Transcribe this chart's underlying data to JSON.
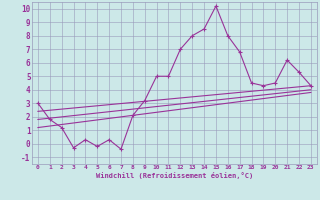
{
  "x": [
    0,
    1,
    2,
    3,
    4,
    5,
    6,
    7,
    8,
    9,
    10,
    11,
    12,
    13,
    14,
    15,
    16,
    17,
    18,
    19,
    20,
    21,
    22,
    23
  ],
  "line1": [
    3.0,
    1.8,
    1.2,
    -0.3,
    0.3,
    -0.2,
    0.3,
    -0.4,
    2.1,
    3.2,
    5.0,
    5.0,
    7.0,
    8.0,
    8.5,
    10.2,
    8.0,
    6.8,
    4.5,
    4.3,
    4.5,
    6.2,
    5.3,
    4.3
  ],
  "line2_x": [
    0,
    23
  ],
  "line2_y": [
    1.8,
    4.0
  ],
  "line3_x": [
    0,
    23
  ],
  "line3_y": [
    2.4,
    4.3
  ],
  "line4_x": [
    0,
    23
  ],
  "line4_y": [
    1.2,
    3.8
  ],
  "color": "#993399",
  "bg_color": "#cce8e8",
  "grid_color": "#9999bb",
  "xlabel": "Windchill (Refroidissement éolien,°C)",
  "xlim": [
    -0.5,
    23.5
  ],
  "ylim": [
    -1.5,
    10.5
  ],
  "yticks": [
    -1,
    0,
    1,
    2,
    3,
    4,
    5,
    6,
    7,
    8,
    9,
    10
  ],
  "xticks": [
    0,
    1,
    2,
    3,
    4,
    5,
    6,
    7,
    8,
    9,
    10,
    11,
    12,
    13,
    14,
    15,
    16,
    17,
    18,
    19,
    20,
    21,
    22,
    23
  ]
}
